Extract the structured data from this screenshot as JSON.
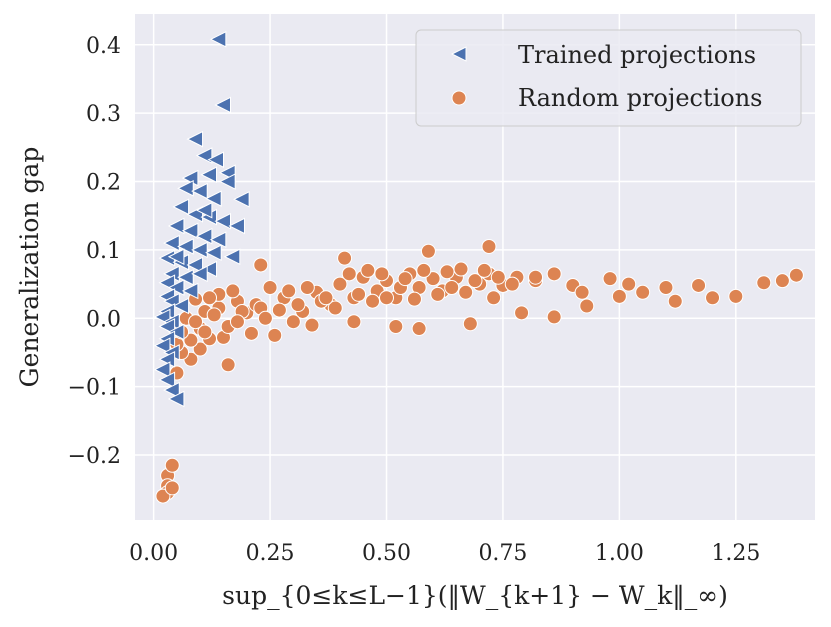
{
  "chart_data": {
    "type": "scatter",
    "xlabel": "sup_{0≤k≤L−1}(‖W_{k+1} − W_k‖_∞)",
    "ylabel": "Generalization gap",
    "xlim": [
      -0.04,
      1.42
    ],
    "ylim": [
      -0.295,
      0.445
    ],
    "x_ticks": [
      0.0,
      0.25,
      0.5,
      0.75,
      1.0,
      1.25
    ],
    "x_tick_labels": [
      "0.00",
      "0.25",
      "0.50",
      "0.75",
      "1.00",
      "1.25"
    ],
    "y_ticks": [
      -0.2,
      -0.1,
      0.0,
      0.1,
      0.2,
      0.3,
      0.4
    ],
    "y_tick_labels": [
      "−0.2",
      "−0.1",
      "0.0",
      "0.1",
      "0.2",
      "0.3",
      "0.4"
    ],
    "grid": true,
    "legend_position": "top-right",
    "colors": {
      "background": "#eaeaf2",
      "grid": "#ffffff",
      "trained": "#4c72b0",
      "random": "#dd8452"
    },
    "series": [
      {
        "name": "Trained projections",
        "marker": "triangle-left",
        "points": [
          [
            0.14,
            0.408
          ],
          [
            0.15,
            0.312
          ],
          [
            0.09,
            0.262
          ],
          [
            0.11,
            0.238
          ],
          [
            0.135,
            0.232
          ],
          [
            0.16,
            0.213
          ],
          [
            0.12,
            0.21
          ],
          [
            0.08,
            0.205
          ],
          [
            0.19,
            0.174
          ],
          [
            0.07,
            0.19
          ],
          [
            0.1,
            0.186
          ],
          [
            0.13,
            0.175
          ],
          [
            0.06,
            0.163
          ],
          [
            0.09,
            0.152
          ],
          [
            0.12,
            0.148
          ],
          [
            0.15,
            0.142
          ],
          [
            0.05,
            0.135
          ],
          [
            0.08,
            0.128
          ],
          [
            0.11,
            0.12
          ],
          [
            0.14,
            0.115
          ],
          [
            0.04,
            0.11
          ],
          [
            0.07,
            0.105
          ],
          [
            0.1,
            0.1
          ],
          [
            0.13,
            0.096
          ],
          [
            0.03,
            0.088
          ],
          [
            0.06,
            0.082
          ],
          [
            0.09,
            0.078
          ],
          [
            0.12,
            0.072
          ],
          [
            0.04,
            0.065
          ],
          [
            0.07,
            0.06
          ],
          [
            0.03,
            0.052
          ],
          [
            0.05,
            0.045
          ],
          [
            0.08,
            0.04
          ],
          [
            0.03,
            0.032
          ],
          [
            0.04,
            0.025
          ],
          [
            0.06,
            0.018
          ],
          [
            0.03,
            0.01
          ],
          [
            0.02,
            0.002
          ],
          [
            0.04,
            -0.005
          ],
          [
            0.03,
            -0.012
          ],
          [
            0.05,
            -0.02
          ],
          [
            0.03,
            -0.03
          ],
          [
            0.02,
            -0.04
          ],
          [
            0.04,
            -0.05
          ],
          [
            0.03,
            -0.06
          ],
          [
            0.02,
            -0.075
          ],
          [
            0.03,
            -0.09
          ],
          [
            0.04,
            -0.105
          ],
          [
            0.05,
            -0.118
          ],
          [
            0.16,
            0.2
          ],
          [
            0.18,
            0.135
          ],
          [
            0.17,
            0.09
          ],
          [
            0.11,
            0.158
          ],
          [
            0.05,
            0.09
          ],
          [
            0.1,
            0.065
          ]
        ]
      },
      {
        "name": "Random projections",
        "marker": "circle",
        "points": [
          [
            0.03,
            -0.23
          ],
          [
            0.04,
            -0.215
          ],
          [
            0.03,
            -0.245
          ],
          [
            0.03,
            -0.255
          ],
          [
            0.02,
            -0.26
          ],
          [
            0.04,
            -0.248
          ],
          [
            0.16,
            -0.068
          ],
          [
            0.05,
            -0.08
          ],
          [
            0.08,
            -0.06
          ],
          [
            0.06,
            -0.05
          ],
          [
            0.1,
            -0.045
          ],
          [
            0.05,
            -0.038
          ],
          [
            0.08,
            -0.032
          ],
          [
            0.06,
            -0.02
          ],
          [
            0.1,
            -0.015
          ],
          [
            0.04,
            -0.01
          ],
          [
            0.07,
            0.0
          ],
          [
            0.11,
            0.01
          ],
          [
            0.14,
            0.015
          ],
          [
            0.18,
            0.025
          ],
          [
            0.2,
            0.008
          ],
          [
            0.22,
            0.02
          ],
          [
            0.25,
            0.045
          ],
          [
            0.28,
            0.03
          ],
          [
            0.32,
            0.01
          ],
          [
            0.35,
            0.038
          ],
          [
            0.38,
            0.02
          ],
          [
            0.4,
            0.05
          ],
          [
            0.43,
            0.03
          ],
          [
            0.45,
            0.06
          ],
          [
            0.48,
            0.04
          ],
          [
            0.5,
            0.055
          ],
          [
            0.52,
            0.03
          ],
          [
            0.55,
            0.065
          ],
          [
            0.57,
            0.045
          ],
          [
            0.6,
            0.058
          ],
          [
            0.62,
            0.04
          ],
          [
            0.65,
            0.06
          ],
          [
            0.67,
            0.038
          ],
          [
            0.7,
            0.05
          ],
          [
            0.72,
            0.065
          ],
          [
            0.75,
            0.048
          ],
          [
            0.78,
            0.06
          ],
          [
            0.82,
            0.055
          ],
          [
            0.86,
            0.065
          ],
          [
            0.9,
            0.048
          ],
          [
            0.92,
            0.038
          ],
          [
            0.98,
            0.058
          ],
          [
            1.02,
            0.05
          ],
          [
            1.05,
            0.038
          ],
          [
            1.1,
            0.045
          ],
          [
            1.12,
            0.025
          ],
          [
            1.17,
            0.048
          ],
          [
            1.2,
            0.03
          ],
          [
            1.25,
            0.032
          ],
          [
            1.31,
            0.052
          ],
          [
            1.35,
            0.055
          ],
          [
            1.38,
            0.063
          ],
          [
            0.23,
            0.078
          ],
          [
            0.41,
            0.088
          ],
          [
            0.59,
            0.098
          ],
          [
            0.72,
            0.105
          ],
          [
            0.14,
            0.035
          ],
          [
            0.17,
            0.04
          ],
          [
            0.12,
            0.03
          ],
          [
            0.09,
            0.028
          ],
          [
            0.43,
            -0.005
          ],
          [
            0.52,
            -0.012
          ],
          [
            0.57,
            -0.015
          ],
          [
            0.68,
            -0.008
          ],
          [
            0.79,
            0.008
          ],
          [
            0.86,
            0.002
          ],
          [
            0.93,
            0.018
          ],
          [
            1.0,
            0.032
          ],
          [
            0.3,
            -0.005
          ],
          [
            0.34,
            -0.01
          ],
          [
            0.21,
            -0.022
          ],
          [
            0.26,
            -0.025
          ],
          [
            0.15,
            -0.028
          ],
          [
            0.12,
            -0.03
          ],
          [
            0.27,
            0.012
          ],
          [
            0.31,
            0.02
          ],
          [
            0.36,
            0.025
          ],
          [
            0.39,
            0.015
          ],
          [
            0.44,
            0.035
          ],
          [
            0.47,
            0.025
          ],
          [
            0.5,
            0.03
          ],
          [
            0.53,
            0.045
          ],
          [
            0.56,
            0.028
          ],
          [
            0.61,
            0.035
          ],
          [
            0.64,
            0.045
          ],
          [
            0.69,
            0.055
          ],
          [
            0.73,
            0.03
          ],
          [
            0.77,
            0.05
          ],
          [
            0.82,
            0.06
          ],
          [
            0.19,
            0.01
          ],
          [
            0.23,
            0.015
          ],
          [
            0.29,
            0.04
          ],
          [
            0.33,
            0.045
          ],
          [
            0.37,
            0.03
          ],
          [
            0.42,
            0.065
          ],
          [
            0.46,
            0.07
          ],
          [
            0.49,
            0.065
          ],
          [
            0.54,
            0.058
          ],
          [
            0.58,
            0.07
          ],
          [
            0.63,
            0.068
          ],
          [
            0.66,
            0.072
          ],
          [
            0.71,
            0.07
          ],
          [
            0.74,
            0.06
          ],
          [
            0.24,
            0.0
          ],
          [
            0.16,
            -0.012
          ],
          [
            0.13,
            0.005
          ],
          [
            0.18,
            -0.005
          ],
          [
            0.11,
            -0.02
          ],
          [
            0.09,
            -0.005
          ]
        ]
      }
    ]
  }
}
